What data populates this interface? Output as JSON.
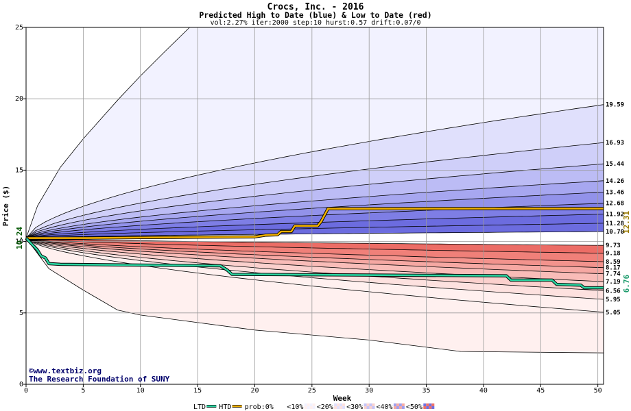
{
  "title": "Crocs, Inc. - 2016",
  "subtitle": "Predicted High to Date (blue) &  Low to Date (red)",
  "params": "vol:2.27% iter:2000 step:10 hurst:0.57 drift:0.07/0",
  "colors": {
    "htd_line": "#f0b000",
    "ltd_line": "#2ad4a0",
    "htd_label": "#9a7a00",
    "ltd_label": "#1a9a6a",
    "start_label": "#005500",
    "blue_bands": [
      "#f2f2ff",
      "#e0e0fc",
      "#cfcff9",
      "#bcbcf5",
      "#a7a7f0",
      "#9292ea",
      "#7e7ee5",
      "#6c6cdf"
    ],
    "red_bands": [
      "#fff0ef",
      "#fde1df",
      "#fbd0cd",
      "#f9bcb8",
      "#f6a8a3",
      "#f3938d",
      "#f08079",
      "#ec6d66"
    ]
  },
  "chart_data": {
    "type": "area",
    "xlabel": "Week",
    "ylabel": "Price ($)",
    "xlim": [
      0,
      50.5
    ],
    "ylim": [
      0,
      25
    ],
    "xticks": [
      0,
      5,
      10,
      15,
      20,
      25,
      30,
      35,
      40,
      45,
      50
    ],
    "yticks": [
      0,
      5,
      10,
      15,
      20,
      25
    ],
    "grid": true,
    "start_price": 10.24,
    "start_label": "10.24",
    "blue_band_end_values": [
      {
        "label": "19.59",
        "value": 19.59
      },
      {
        "label": "16.93",
        "value": 16.93
      },
      {
        "label": "15.44",
        "value": 15.44
      },
      {
        "label": "14.26",
        "value": 14.26
      },
      {
        "label": "13.46",
        "value": 13.46
      },
      {
        "label": "12.68",
        "value": 12.68
      },
      {
        "label": "11.92",
        "value": 11.92
      },
      {
        "label": "11.28",
        "value": 11.28
      },
      {
        "label": "10.70",
        "value": 10.7
      }
    ],
    "red_band_end_values": [
      {
        "label": "9.73",
        "value": 9.73
      },
      {
        "label": "9.18",
        "value": 9.18
      },
      {
        "label": "8.59",
        "value": 8.59
      },
      {
        "label": "8.17",
        "value": 8.17
      },
      {
        "label": "7.74",
        "value": 7.74
      },
      {
        "label": "7.19",
        "value": 7.19
      },
      {
        "label": "6.56",
        "value": 6.56
      },
      {
        "label": "5.95",
        "value": 5.95
      },
      {
        "label": "5.05",
        "value": 5.05
      }
    ],
    "outer_high_curve": {
      "x": [
        0,
        1,
        3,
        5,
        8,
        10,
        12,
        14.3
      ],
      "y": [
        10.24,
        12.5,
        15.2,
        17.2,
        19.9,
        21.6,
        23.2,
        25
      ]
    },
    "outer_low_curve": {
      "x": [
        0,
        2,
        5,
        8,
        10,
        20,
        30,
        38,
        50.5
      ],
      "y": [
        10.24,
        8.1,
        6.6,
        5.2,
        4.85,
        3.8,
        3.1,
        2.3,
        2.2
      ]
    },
    "series": [
      {
        "name": "HTD",
        "x": [
          0,
          5,
          10,
          15,
          20,
          21,
          22,
          22.3,
          23.2,
          23.5,
          25.5,
          25.8,
          26.4,
          40,
          50.5
        ],
        "y": [
          10.24,
          10.24,
          10.28,
          10.3,
          10.33,
          10.45,
          10.48,
          10.7,
          10.7,
          11.1,
          11.1,
          11.4,
          12.3,
          12.31,
          12.31
        ]
      },
      {
        "name": "LTD",
        "x": [
          0,
          1,
          1.3,
          1.7,
          2,
          3,
          10,
          17,
          17.3,
          17.6,
          18,
          42,
          42.4,
          46,
          46.4,
          48.5,
          48.8,
          50.5
        ],
        "y": [
          10.24,
          9.4,
          9.0,
          8.85,
          8.45,
          8.4,
          8.35,
          8.3,
          8.15,
          8.0,
          7.7,
          7.6,
          7.3,
          7.3,
          7.0,
          6.95,
          6.76,
          6.76
        ]
      }
    ],
    "htd_end_label": "12.31",
    "ltd_end_label": "6.76",
    "watermark": [
      "©www.textbiz.org",
      "The Research Foundation of SUNY"
    ]
  },
  "legend": {
    "items": [
      {
        "label": "LTD",
        "kind": "line",
        "color": "#2ad4a0"
      },
      {
        "label": "HTD",
        "kind": "line",
        "color": "#f0b000"
      },
      {
        "label": "prob:0%",
        "kind": "checker",
        "colors": [
          "#ffffff",
          "#ffffff"
        ]
      },
      {
        "label": "<10%",
        "kind": "checker",
        "colors": [
          "#f2f2ff",
          "#fff0ef"
        ]
      },
      {
        "label": "<20%",
        "kind": "checker",
        "colors": [
          "#e0e0fc",
          "#fde1df"
        ]
      },
      {
        "label": "<30%",
        "kind": "checker",
        "colors": [
          "#c5c5f7",
          "#fad2cf"
        ]
      },
      {
        "label": "<40%",
        "kind": "checker",
        "colors": [
          "#a0a0ee",
          "#f6aaa4"
        ]
      },
      {
        "label": "<50%",
        "kind": "checker",
        "colors": [
          "#7070e0",
          "#ee7068"
        ]
      }
    ]
  }
}
